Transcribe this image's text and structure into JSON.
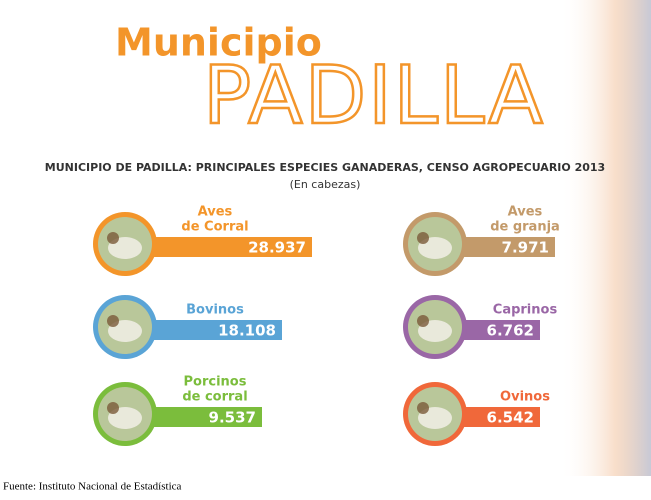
{
  "header": {
    "title_small": "Municipio",
    "title_large": "PADILLA"
  },
  "subtitle": "MUNICIPIO DE PADILLA: PRINCIPALES ESPECIES GANADERAS, CENSO AGROPECUARIO 2013",
  "unit_note": "(En cabezas)",
  "items": [
    {
      "label": [
        "Aves",
        "de Corral"
      ],
      "value": "28.937",
      "color": "#f3952a"
    },
    {
      "label": [
        "Bovinos"
      ],
      "value": "18.108",
      "color": "#5aa4d6"
    },
    {
      "label": [
        "Porcinos",
        "de corral"
      ],
      "value": "9.537",
      "color": "#7bbd3c"
    },
    {
      "label": [
        "Aves",
        "de granja"
      ],
      "value": "7.971",
      "color": "#c39a6a"
    },
    {
      "label": [
        "Caprinos"
      ],
      "value": "6.762",
      "color": "#9a67a6"
    },
    {
      "label": [
        "Ovinos"
      ],
      "value": "6.542",
      "color": "#f0683a"
    }
  ],
  "source": "Fuente: Instituto Nacional de Estadística"
}
